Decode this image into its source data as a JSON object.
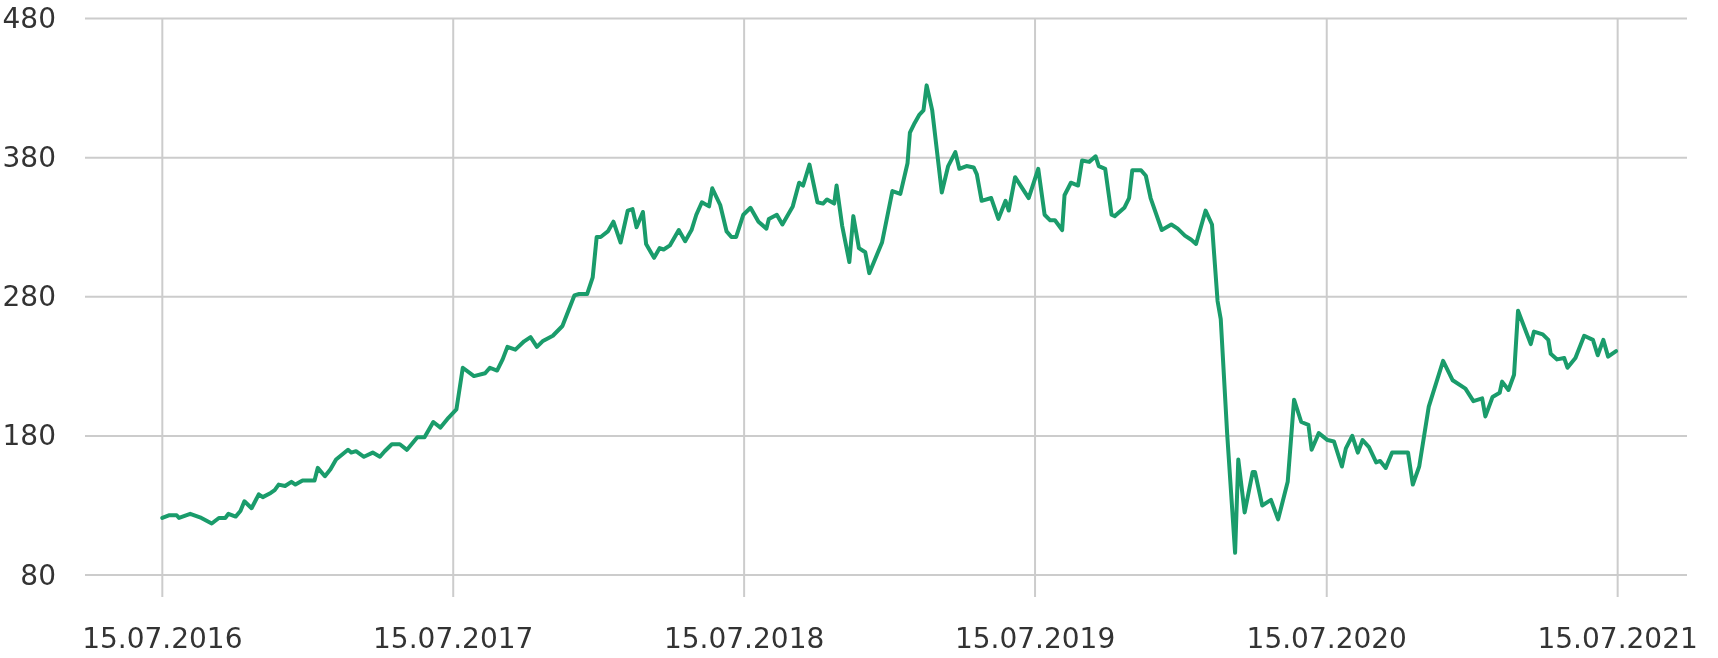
{
  "chart_data": {
    "type": "line",
    "xlim": [
      "2016-04-09",
      "2021-10-10"
    ],
    "ylim": [
      80,
      480
    ],
    "yticks": [
      80,
      180,
      280,
      380,
      480
    ],
    "xticks": [
      {
        "value": "2016-07-15",
        "label": "15.07.2016"
      },
      {
        "value": "2017-07-15",
        "label": "15.07.2017"
      },
      {
        "value": "2018-07-15",
        "label": "15.07.2018"
      },
      {
        "value": "2019-07-15",
        "label": "15.07.2019"
      },
      {
        "value": "2020-07-15",
        "label": "15.07.2020"
      },
      {
        "value": "2021-07-15",
        "label": "15.07.2021"
      }
    ],
    "grid": true,
    "marker": "none",
    "line_style": "solid",
    "x": [
      "2016-07-15",
      "2016-07-24",
      "2016-08-02",
      "2016-08-05",
      "2016-08-19",
      "2016-09-02",
      "2016-09-15",
      "2016-09-24",
      "2016-10-02",
      "2016-10-06",
      "2016-10-15",
      "2016-10-21",
      "2016-10-26",
      "2016-11-04",
      "2016-11-13",
      "2016-11-18",
      "2016-11-28",
      "2016-12-03",
      "2016-12-08",
      "2016-12-16",
      "2016-12-24",
      "2016-12-29",
      "2017-01-07",
      "2017-01-22",
      "2017-01-26",
      "2017-02-04",
      "2017-02-11",
      "2017-02-18",
      "2017-03-05",
      "2017-03-09",
      "2017-03-15",
      "2017-03-25",
      "2017-04-05",
      "2017-04-14",
      "2017-04-20",
      "2017-04-29",
      "2017-05-09",
      "2017-05-18",
      "2017-05-31",
      "2017-06-09",
      "2017-06-20",
      "2017-06-29",
      "2017-07-09",
      "2017-07-19",
      "2017-07-27",
      "2017-08-10",
      "2017-08-24",
      "2017-08-30",
      "2017-09-08",
      "2017-09-15",
      "2017-09-21",
      "2017-10-01",
      "2017-10-12",
      "2017-10-20",
      "2017-10-28",
      "2017-11-04",
      "2017-11-17",
      "2017-11-29",
      "2017-12-14",
      "2017-12-20",
      "2017-12-30",
      "2018-01-06",
      "2018-01-11",
      "2018-01-16",
      "2018-01-25",
      "2018-02-01",
      "2018-02-10",
      "2018-02-19",
      "2018-02-25",
      "2018-03-02",
      "2018-03-10",
      "2018-03-14",
      "2018-03-24",
      "2018-03-31",
      "2018-04-05",
      "2018-04-13",
      "2018-04-24",
      "2018-05-02",
      "2018-05-10",
      "2018-05-16",
      "2018-05-23",
      "2018-06-01",
      "2018-06-05",
      "2018-06-15",
      "2018-06-23",
      "2018-06-29",
      "2018-07-05",
      "2018-07-14",
      "2018-07-23",
      "2018-08-02",
      "2018-08-12",
      "2018-08-15",
      "2018-08-25",
      "2018-09-01",
      "2018-09-14",
      "2018-09-22",
      "2018-09-27",
      "2018-10-05",
      "2018-10-15",
      "2018-10-22",
      "2018-10-27",
      "2018-11-05",
      "2018-11-08",
      "2018-11-15",
      "2018-11-24",
      "2018-11-29",
      "2018-12-06",
      "2018-12-14",
      "2018-12-19",
      "2019-01-04",
      "2019-01-17",
      "2019-01-27",
      "2019-02-05",
      "2019-02-08",
      "2019-02-14",
      "2019-02-20",
      "2019-02-25",
      "2019-03-01",
      "2019-03-08",
      "2019-03-20",
      "2019-03-28",
      "2019-04-06",
      "2019-04-11",
      "2019-04-20",
      "2019-04-29",
      "2019-05-03",
      "2019-05-09",
      "2019-05-21",
      "2019-05-30",
      "2019-06-08",
      "2019-06-12",
      "2019-06-20",
      "2019-07-07",
      "2019-07-19",
      "2019-07-27",
      "2019-08-03",
      "2019-08-09",
      "2019-08-18",
      "2019-08-21",
      "2019-08-29",
      "2019-09-07",
      "2019-09-12",
      "2019-09-21",
      "2019-09-29",
      "2019-10-03",
      "2019-10-11",
      "2019-10-19",
      "2019-10-23",
      "2019-11-04",
      "2019-11-10",
      "2019-11-14",
      "2019-11-25",
      "2019-12-01",
      "2019-12-07",
      "2019-12-21",
      "2020-01-02",
      "2020-01-10",
      "2020-01-19",
      "2020-01-27",
      "2020-02-02",
      "2020-02-14",
      "2020-02-22",
      "2020-02-29",
      "2020-03-04",
      "2020-03-12",
      "2020-03-22",
      "2020-03-26",
      "2020-04-03",
      "2020-04-13",
      "2020-04-16",
      "2020-04-25",
      "2020-05-06",
      "2020-05-15",
      "2020-05-27",
      "2020-06-04",
      "2020-06-13",
      "2020-06-22",
      "2020-06-26",
      "2020-07-05",
      "2020-07-16",
      "2020-07-24",
      "2020-08-03",
      "2020-08-08",
      "2020-08-16",
      "2020-08-23",
      "2020-08-29",
      "2020-09-06",
      "2020-09-15",
      "2020-09-20",
      "2020-09-27",
      "2020-10-05",
      "2020-10-14",
      "2020-10-25",
      "2020-10-31",
      "2020-11-08",
      "2020-11-20",
      "2020-12-08",
      "2020-12-20",
      "2021-01-05",
      "2021-01-15",
      "2021-01-26",
      "2021-01-30",
      "2021-02-08",
      "2021-02-17",
      "2021-02-20",
      "2021-02-28",
      "2021-03-07",
      "2021-03-12",
      "2021-03-28",
      "2021-04-01",
      "2021-04-12",
      "2021-04-19",
      "2021-04-22",
      "2021-04-30",
      "2021-05-09",
      "2021-05-13",
      "2021-05-23",
      "2021-06-03",
      "2021-06-14",
      "2021-06-20",
      "2021-06-27",
      "2021-07-03",
      "2021-07-13"
    ],
    "series": [
      {
        "color": "#1a9c6b",
        "values": [
          121,
          123,
          123,
          121,
          124,
          121,
          117,
          121,
          121,
          124,
          122,
          126,
          133,
          128,
          138,
          136,
          139,
          141,
          145,
          144,
          147,
          145,
          148,
          148,
          157,
          151,
          156,
          163,
          170,
          168,
          169,
          165,
          168,
          165,
          169,
          174,
          174,
          170,
          179,
          179,
          190,
          186,
          193,
          199,
          229,
          223,
          225,
          229,
          227,
          235,
          244,
          242,
          248,
          251,
          244,
          248,
          252,
          259,
          281,
          282,
          282,
          294,
          323,
          323,
          327,
          334,
          319,
          342,
          343,
          330,
          341,
          318,
          308,
          315,
          314,
          317,
          328,
          320,
          328,
          339,
          348,
          345,
          358,
          346,
          327,
          323,
          323,
          339,
          344,
          334,
          329,
          336,
          339,
          332,
          345,
          362,
          360,
          375,
          348,
          347,
          350,
          347,
          360,
          331,
          305,
          338,
          315,
          312,
          297,
          319,
          356,
          354,
          376,
          398,
          405,
          411,
          414,
          432,
          414,
          355,
          374,
          384,
          372,
          374,
          373,
          368,
          349,
          351,
          336,
          349,
          342,
          366,
          351,
          372,
          339,
          335,
          335,
          328,
          353,
          362,
          360,
          378,
          377,
          381,
          374,
          372,
          339,
          338,
          344,
          351,
          371,
          371,
          367,
          351,
          328,
          332,
          329,
          324,
          321,
          318,
          342,
          332,
          277,
          264,
          182,
          96,
          163,
          125,
          154,
          154,
          130,
          134,
          120,
          147,
          206,
          190,
          188,
          170,
          182,
          177,
          176,
          158,
          171,
          180,
          168,
          177,
          172,
          161,
          162,
          157,
          168,
          168,
          168,
          145,
          158,
          201,
          234,
          220,
          214,
          205,
          207,
          194,
          208,
          211,
          219,
          213,
          224,
          270,
          246,
          255,
          253,
          249,
          239,
          235,
          236,
          229,
          236,
          252,
          249,
          238,
          249,
          237,
          241
        ]
      }
    ]
  }
}
